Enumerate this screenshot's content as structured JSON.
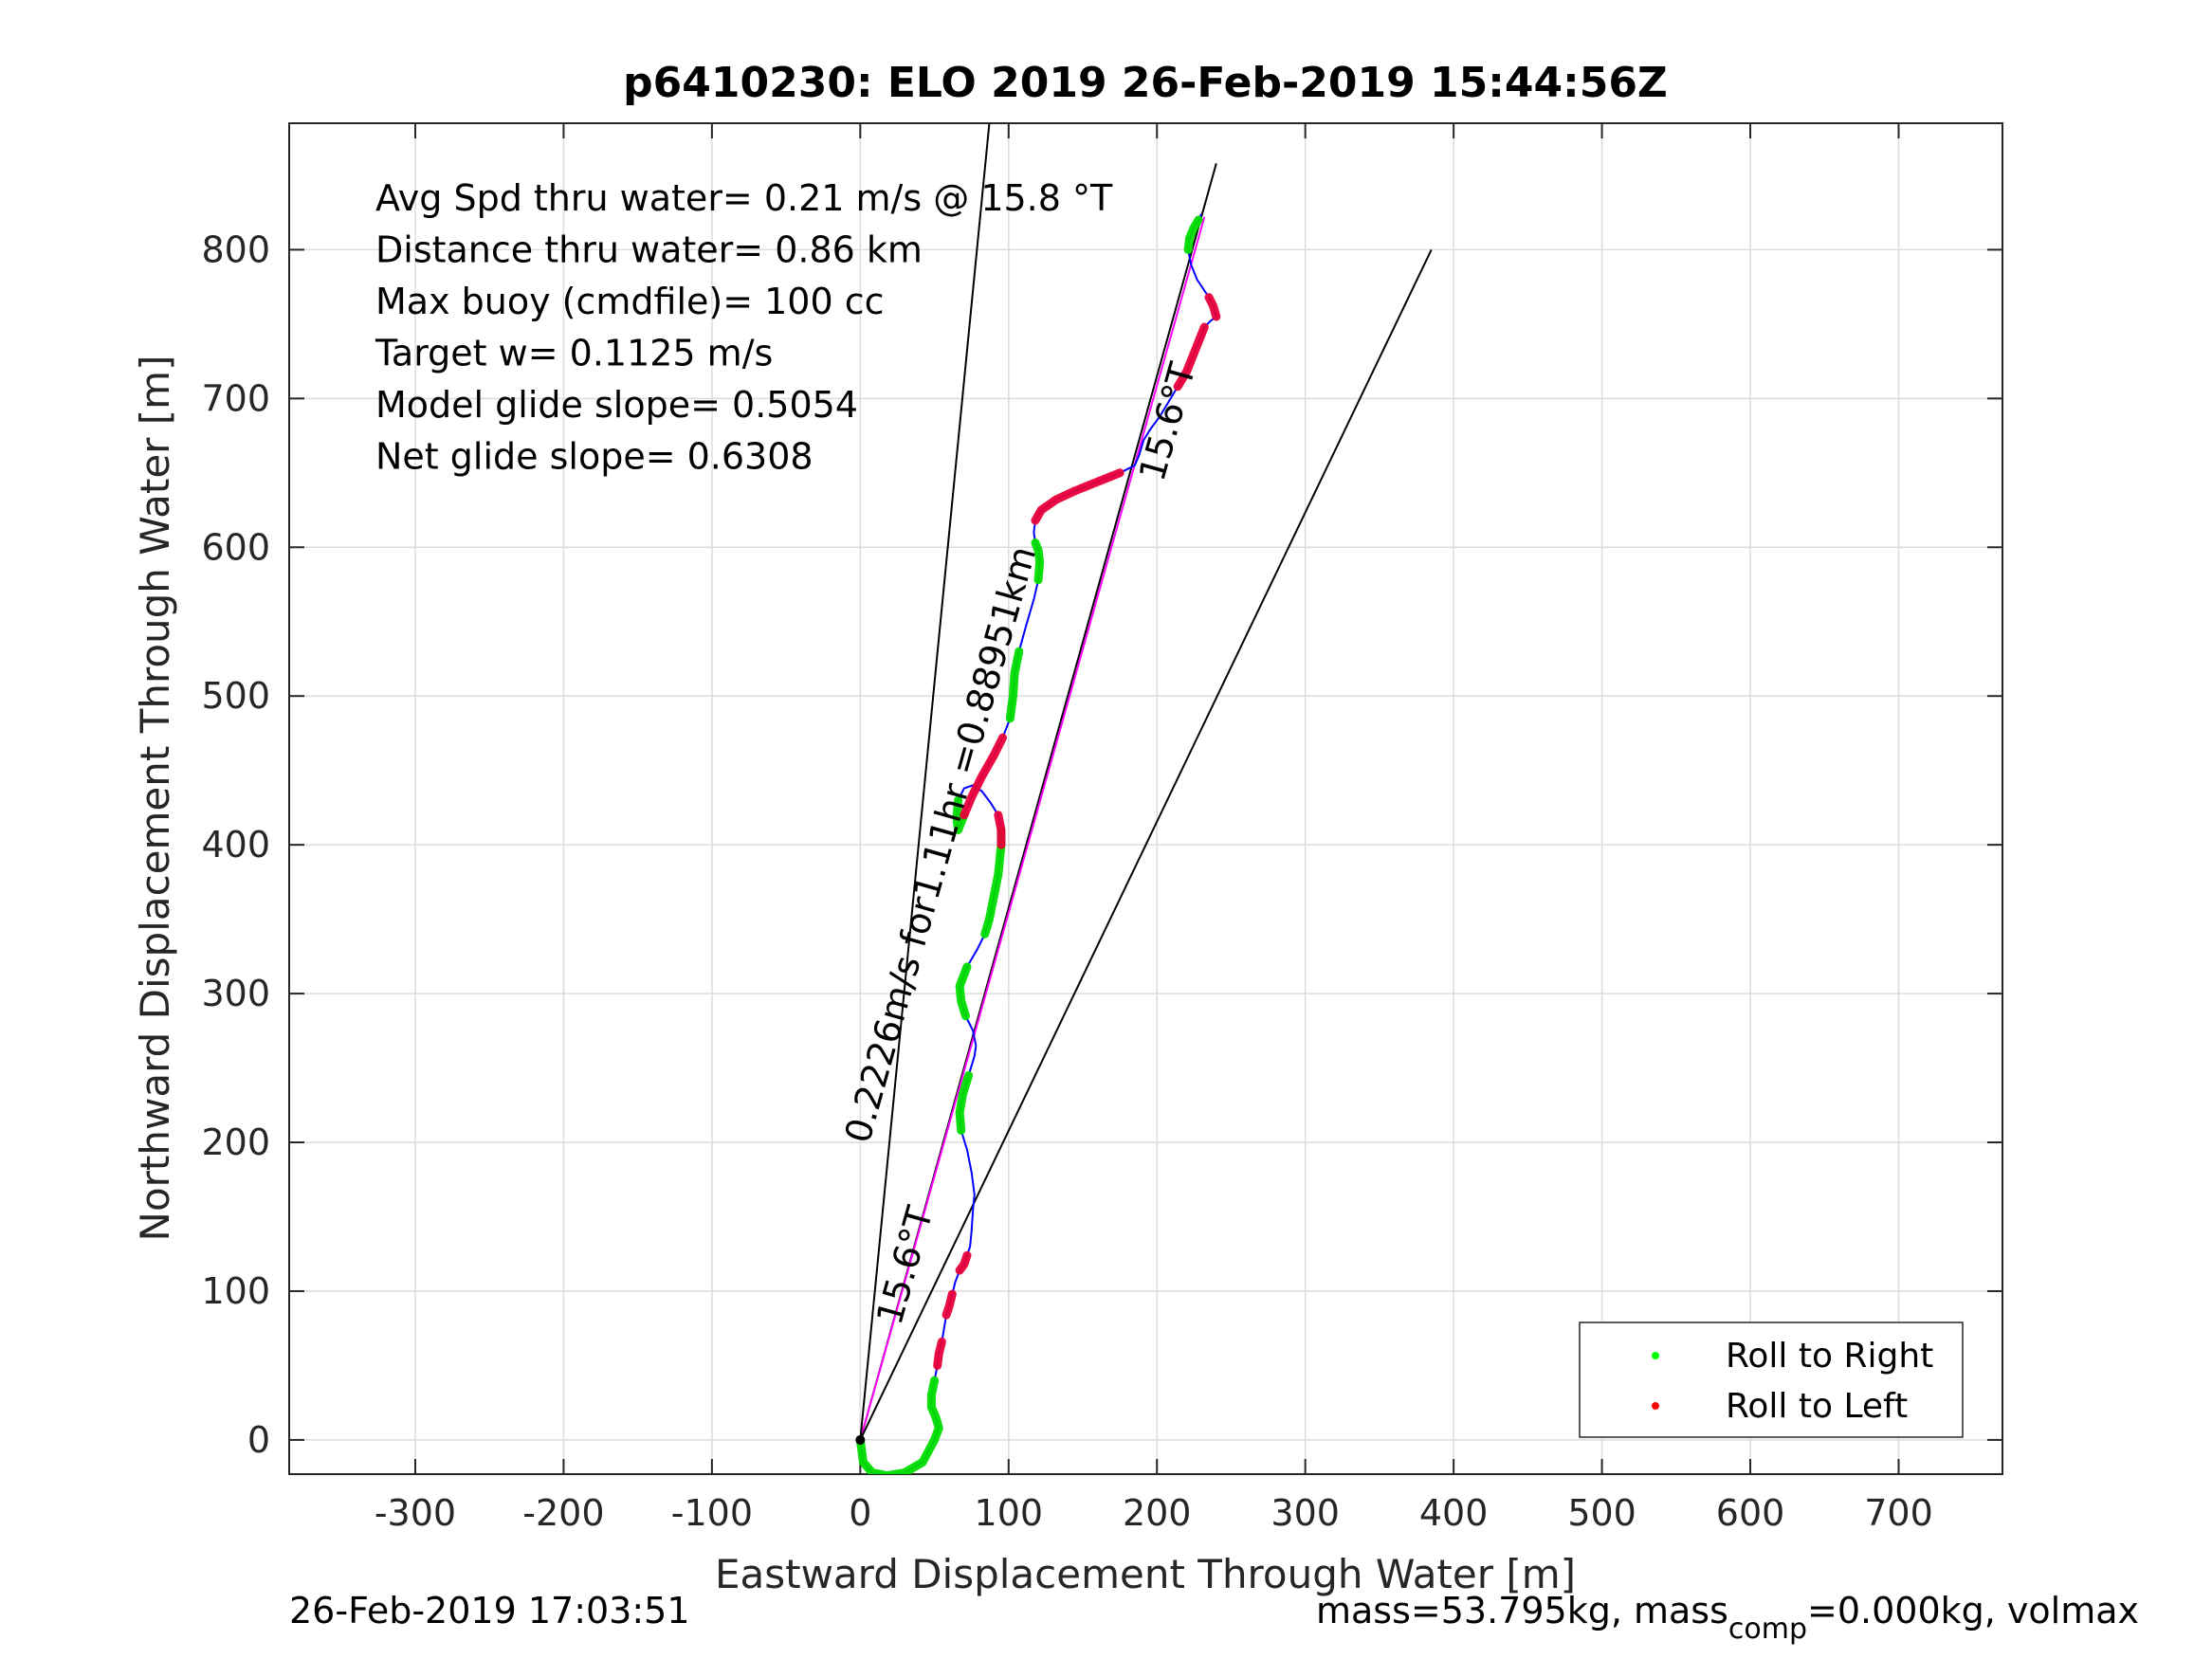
{
  "chart_data": {
    "type": "line",
    "title": "p6410230: ELO 2019 26-Feb-2019 15:44:56Z",
    "xlabel": "Eastward Displacement Through Water [m]",
    "ylabel": "Northward Displacement Through Water [m]",
    "xlim": [
      -385,
      770
    ],
    "ylim": [
      -23,
      885
    ],
    "xticks": [
      -300,
      -200,
      -100,
      0,
      100,
      200,
      300,
      400,
      500,
      600,
      700
    ],
    "yticks": [
      0,
      100,
      200,
      300,
      400,
      500,
      600,
      700,
      800
    ],
    "grid": true,
    "legend": {
      "position": "bottom-right",
      "entries": [
        {
          "label": "Roll to Right",
          "color": "#00ff00"
        },
        {
          "label": "Roll to Left",
          "color": "#ff0000"
        }
      ]
    },
    "info_lines": [
      "Avg Spd thru water=  0.21 m/s @  15.8 °T",
      "Distance thru water=  0.86 km",
      "Max buoy (cmdfile)= 100 cc",
      "Target w= 0.1125 m/s",
      "Model glide slope= 0.5054",
      "Net glide slope= 0.6308"
    ],
    "annotations": {
      "drift_label": "0.2226m/s for1.11hr =0.88951km",
      "heading_label_low": "15.6°T",
      "heading_label_high": "15.6°T"
    },
    "reference_lines": [
      {
        "name": "drift-line",
        "x": [
          0,
          240
        ],
        "y": [
          0,
          858
        ],
        "color": "#000000"
      },
      {
        "name": "heading-line",
        "x": [
          0,
          232
        ],
        "y": [
          0,
          822
        ],
        "color": "#ff00ff"
      },
      {
        "name": "cone-left",
        "x": [
          0,
          87
        ],
        "y": [
          0,
          885
        ],
        "color": "#000000"
      },
      {
        "name": "cone-right",
        "x": [
          0,
          385
        ],
        "y": [
          0,
          800
        ],
        "color": "#000000"
      }
    ],
    "track": {
      "color": "#0000ff",
      "x": [
        0,
        2,
        8,
        18,
        30,
        42,
        50,
        53,
        51,
        48,
        48,
        50,
        52,
        53,
        55,
        56,
        57,
        58,
        60,
        62,
        64,
        67,
        70,
        72,
        74,
        75,
        76,
        77,
        75,
        72,
        68,
        67,
        69,
        73,
        77,
        78,
        76,
        71,
        68,
        67,
        72,
        79,
        84,
        87,
        89,
        91,
        93,
        94,
        95,
        95,
        93,
        88,
        82,
        76,
        70,
        66,
        65,
        66,
        70,
        75,
        82,
        90,
        96,
        101,
        103,
        104,
        107,
        112,
        117,
        120,
        121,
        120,
        118,
        117,
        118,
        122,
        132,
        145,
        160,
        175,
        185,
        188,
        191,
        196,
        202,
        208,
        214,
        220,
        224,
        228,
        232,
        236,
        240,
        238,
        235,
        231,
        227,
        223,
        221,
        222,
        225,
        228,
        230
      ],
      "y": [
        0,
        -15,
        -22,
        -24,
        -22,
        -15,
        0,
        8,
        15,
        22,
        30,
        40,
        50,
        58,
        66,
        72,
        78,
        84,
        90,
        98,
        106,
        114,
        118,
        124,
        130,
        140,
        155,
        165,
        180,
        195,
        208,
        220,
        232,
        245,
        258,
        265,
        275,
        285,
        295,
        305,
        318,
        330,
        340,
        350,
        360,
        370,
        380,
        390,
        400,
        410,
        420,
        428,
        436,
        440,
        438,
        430,
        418,
        410,
        420,
        432,
        446,
        460,
        472,
        485,
        500,
        515,
        530,
        548,
        565,
        578,
        590,
        598,
        603,
        610,
        618,
        625,
        632,
        638,
        644,
        650,
        655,
        662,
        672,
        680,
        688,
        698,
        708,
        718,
        728,
        738,
        748,
        752,
        755,
        762,
        768,
        774,
        780,
        790,
        800,
        808,
        815,
        820,
        824
      ]
    },
    "roll_right_segments": [
      [
        0,
        11
      ],
      [
        30,
        33
      ],
      [
        37,
        40
      ],
      [
        42,
        49
      ],
      [
        55,
        58
      ],
      [
        63,
        66
      ],
      [
        69,
        72
      ],
      [
        98,
        101
      ]
    ],
    "roll_left_segments": [
      [
        12,
        14
      ],
      [
        17,
        19
      ],
      [
        21,
        23
      ],
      [
        48,
        50
      ],
      [
        58,
        62
      ],
      [
        74,
        79
      ],
      [
        86,
        90
      ],
      [
        92,
        94
      ]
    ]
  },
  "footer": {
    "timestamp": "26-Feb-2019 17:03:51",
    "mass_main": "mass=53.795kg, mass",
    "mass_sub": "comp",
    "mass_rest": "=0.000kg, volmax"
  }
}
